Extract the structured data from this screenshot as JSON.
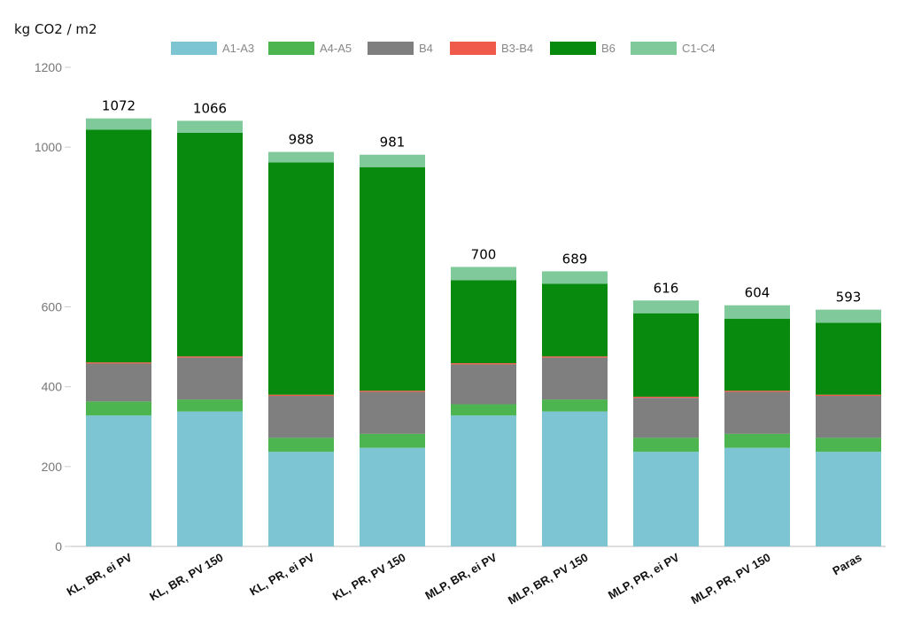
{
  "chart_data": {
    "type": "bar",
    "stacked": true,
    "ylabel": "kg CO2 / m2",
    "ylim": [
      0,
      1200
    ],
    "yticks": [
      0,
      200,
      400,
      600,
      1000,
      1200
    ],
    "ytick_labels": [
      "0",
      "200",
      "400",
      "600",
      "1000",
      "1200"
    ],
    "grid": false,
    "legend_position": "top",
    "categories": [
      "KL, BR, ei PV",
      "KL, BR, PV 150",
      "KL, PR, ei PV",
      "KL, PR, PV 150",
      "MLP, BR, ei PV",
      "MLP, BR, PV 150",
      "MLP, PR, ei PV",
      "MLP, PR, PV 150",
      "Paras"
    ],
    "series": [
      {
        "name": "A1-A3",
        "color": "#7ec5d3",
        "values": [
          328,
          338,
          237,
          247,
          328,
          338,
          237,
          247,
          237
        ]
      },
      {
        "name": "A4-A5",
        "color": "#4cb550",
        "values": [
          35,
          30,
          35,
          35,
          28,
          30,
          35,
          35,
          35
        ]
      },
      {
        "name": "B4",
        "color": "#7f7f7f",
        "values": [
          95,
          105,
          105,
          105,
          100,
          105,
          100,
          105,
          105
        ]
      },
      {
        "name": "B3-B4",
        "color": "#f05a4a",
        "values": [
          3,
          3,
          3,
          3,
          3,
          3,
          3,
          3,
          3
        ]
      },
      {
        "name": "B6",
        "color": "#078a0d",
        "values": [
          583,
          560,
          582,
          560,
          208,
          182,
          209,
          180,
          180
        ]
      },
      {
        "name": "C1-C4",
        "color": "#7fc99a",
        "values": [
          28,
          30,
          26,
          31,
          33,
          31,
          32,
          34,
          33
        ]
      }
    ],
    "totals": [
      "1072",
      "1066",
      "988",
      "981",
      "700",
      "689",
      "616",
      "604",
      "593"
    ]
  }
}
